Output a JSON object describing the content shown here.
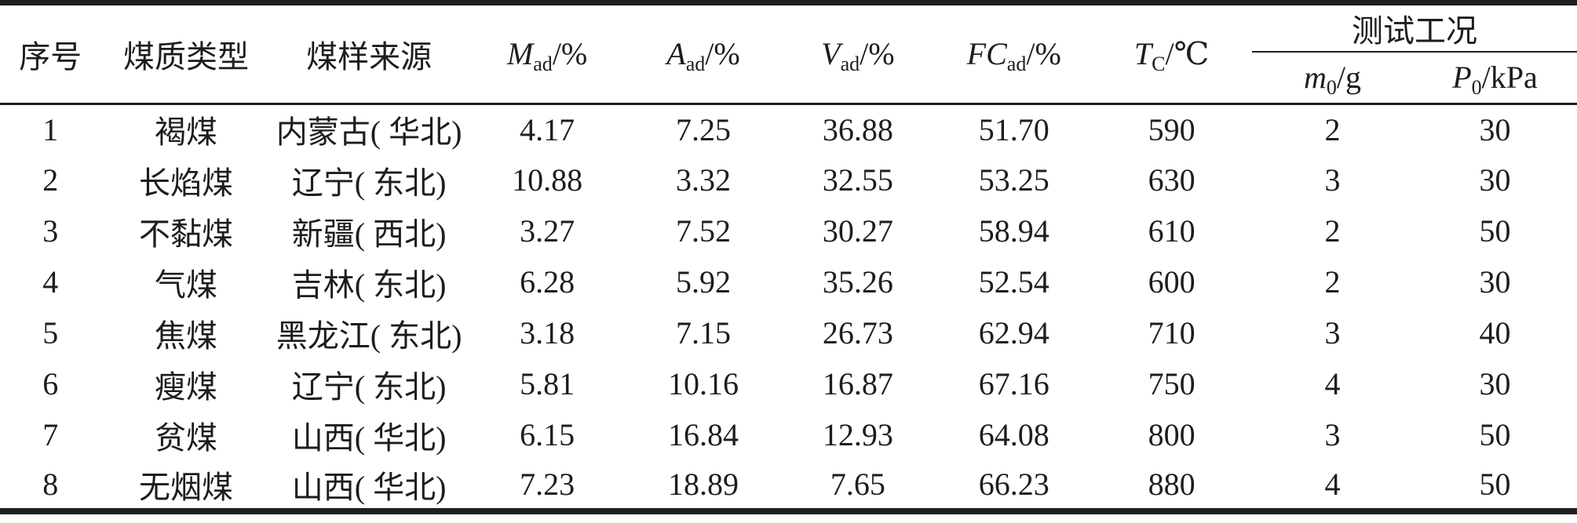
{
  "colors": {
    "background": "#ffffff",
    "text": "#1d1d1d",
    "rule": "#1f1f1f"
  },
  "table": {
    "headers": {
      "index": "序号",
      "coal_type": "煤质类型",
      "sample_source": "煤样来源",
      "m_ad": {
        "sym": "M",
        "sub": "ad",
        "unit": "/%"
      },
      "a_ad": {
        "sym": "A",
        "sub": "ad",
        "unit": "/%"
      },
      "v_ad": {
        "sym": "V",
        "sub": "ad",
        "unit": "/%"
      },
      "fc_ad": {
        "sym": "FC",
        "sub": "ad",
        "unit": "/%"
      },
      "t_c": {
        "sym": "T",
        "sub": "C",
        "unit": "/℃"
      },
      "test_conditions": "测试工况",
      "m0": {
        "sym": "m",
        "sub": "0",
        "unit": "/g"
      },
      "p0": {
        "sym": "P",
        "sub": "0",
        "unit": "/kPa"
      }
    },
    "rows": [
      [
        "1",
        "褐煤",
        "内蒙古( 华北)",
        "4.17",
        "7.25",
        "36.88",
        "51.70",
        "590",
        "2",
        "30"
      ],
      [
        "2",
        "长焰煤",
        "辽宁( 东北)",
        "10.88",
        "3.32",
        "32.55",
        "53.25",
        "630",
        "3",
        "30"
      ],
      [
        "3",
        "不黏煤",
        "新疆( 西北)",
        "3.27",
        "7.52",
        "30.27",
        "58.94",
        "610",
        "2",
        "50"
      ],
      [
        "4",
        "气煤",
        "吉林( 东北)",
        "6.28",
        "5.92",
        "35.26",
        "52.54",
        "600",
        "2",
        "30"
      ],
      [
        "5",
        "焦煤",
        "黑龙江( 东北)",
        "3.18",
        "7.15",
        "26.73",
        "62.94",
        "710",
        "3",
        "40"
      ],
      [
        "6",
        "瘦煤",
        "辽宁( 东北)",
        "5.81",
        "10.16",
        "16.87",
        "67.16",
        "750",
        "4",
        "30"
      ],
      [
        "7",
        "贫煤",
        "山西( 华北)",
        "6.15",
        "16.84",
        "12.93",
        "64.08",
        "800",
        "3",
        "50"
      ],
      [
        "8",
        "无烟煤",
        "山西( 华北)",
        "7.23",
        "18.89",
        "7.65",
        "66.23",
        "880",
        "4",
        "50"
      ]
    ]
  }
}
